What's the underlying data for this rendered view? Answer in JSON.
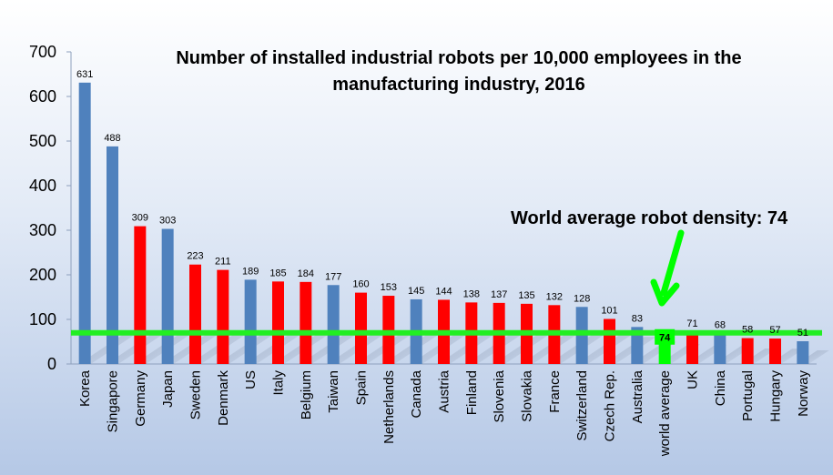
{
  "chart_data": {
    "type": "bar",
    "title_lines": [
      "Number of installed industrial robots per 10,000  employees in the",
      "manufacturing industry, 2016"
    ],
    "xlabel": "",
    "ylabel": "",
    "ylim": [
      0,
      700
    ],
    "yticks": [
      0,
      100,
      200,
      300,
      400,
      500,
      600,
      700
    ],
    "grid": false,
    "categories": [
      "Korea",
      "Singapore",
      "Germany",
      "Japan",
      "Sweden",
      "Denmark",
      "US",
      "Italy",
      "Belgium",
      "Taiwan",
      "Spain",
      "Netherlands",
      "Canada",
      "Austria",
      "Finland",
      "Slovenia",
      "Slovakia",
      "France",
      "Switzerland",
      "Czech Rep.",
      "Australia",
      "world average",
      "UK",
      "China",
      "Portugal",
      "Hungary",
      "Norway"
    ],
    "values": [
      631,
      488,
      309,
      303,
      223,
      211,
      189,
      185,
      184,
      177,
      160,
      153,
      145,
      144,
      138,
      137,
      135,
      132,
      128,
      101,
      83,
      74,
      71,
      68,
      58,
      57,
      51
    ],
    "bar_colors": [
      "blue",
      "blue",
      "red",
      "blue",
      "red",
      "red",
      "blue",
      "red",
      "red",
      "blue",
      "red",
      "red",
      "blue",
      "red",
      "red",
      "red",
      "red",
      "red",
      "blue",
      "red",
      "blue",
      "green",
      "red",
      "blue",
      "red",
      "red",
      "blue"
    ],
    "colors": {
      "blue": "#4f81bd",
      "red": "#ff0000",
      "green": "#00ff00",
      "reference_line": "#22ee22"
    },
    "reference_line": {
      "value": 74
    },
    "annotation": "World average robot density: 74"
  }
}
